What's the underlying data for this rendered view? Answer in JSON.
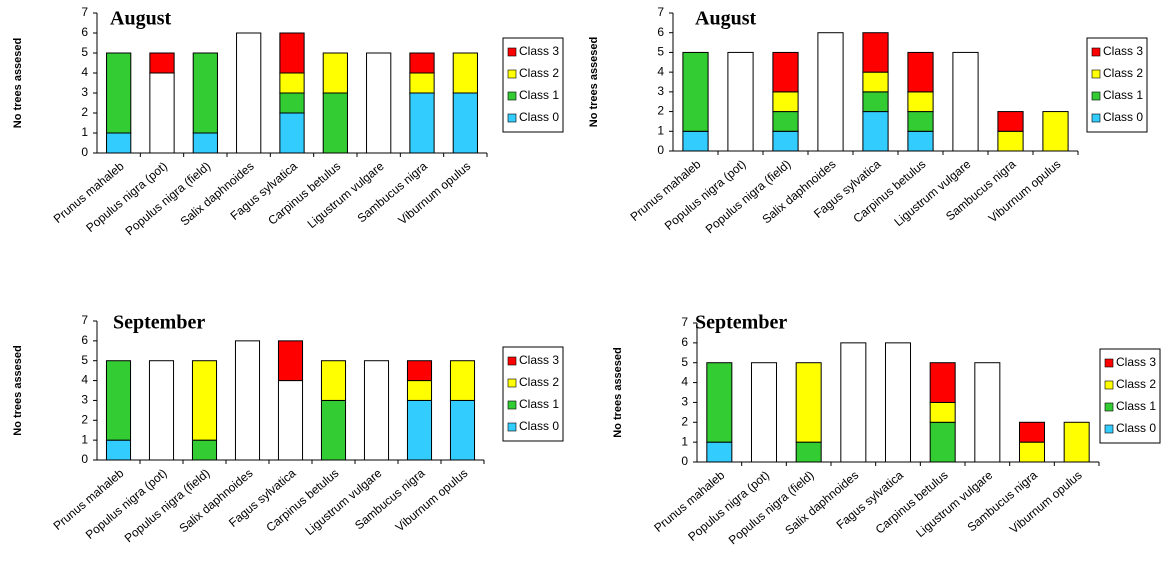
{
  "chart_data": [
    {
      "type": "stacked-bar",
      "title": "August",
      "y_label": "No trees assesed",
      "categories": [
        "Prunus mahaleb",
        "Populus nigra (pot)",
        "Populus nigra (field)",
        "Salix daphnoides",
        "Fagus sylvatica",
        "Carpinus betulus",
        "Ligustrum vulgare",
        "Sambucus nigra",
        "Viburnum opulus"
      ],
      "series": [
        {
          "color": "#ffffff",
          "values": [
            0,
            4,
            0,
            6,
            0,
            0,
            5,
            0,
            0
          ]
        },
        {
          "name": "Class 0",
          "color": "#33ccff",
          "values": [
            1,
            0,
            1,
            0,
            2,
            0,
            0,
            3,
            3
          ]
        },
        {
          "name": "Class 1",
          "color": "#33cc33",
          "values": [
            4,
            0,
            4,
            0,
            1,
            3,
            0,
            0,
            0
          ]
        },
        {
          "name": "Class 2",
          "color": "#ffff00",
          "values": [
            0,
            0,
            0,
            0,
            1,
            2,
            0,
            1,
            2
          ]
        },
        {
          "name": "Class 3",
          "color": "#ff0000",
          "values": [
            0,
            1,
            0,
            0,
            2,
            0,
            0,
            1,
            0
          ]
        }
      ],
      "ylim": [
        0,
        7
      ],
      "yticks": [
        0,
        1,
        2,
        3,
        4,
        5,
        6,
        7
      ],
      "grid": false,
      "legend": "right"
    },
    {
      "type": "stacked-bar",
      "title": "August",
      "y_label": "No trees assesed",
      "categories": [
        "Prunus mahaleb",
        "Populus nigra (pot)",
        "Populus nigra (field)",
        "Salix daphnoides",
        "Fagus sylvatica",
        "Carpinus betulus",
        "Ligustrum vulgare",
        "Sambucus nigra",
        "Viburnum opulus"
      ],
      "series": [
        {
          "color": "#ffffff",
          "values": [
            0,
            5,
            0,
            6,
            0,
            0,
            5,
            0,
            0
          ]
        },
        {
          "name": "Class 0",
          "color": "#33ccff",
          "values": [
            1,
            0,
            1,
            0,
            2,
            1,
            0,
            0,
            0
          ]
        },
        {
          "name": "Class 1",
          "color": "#33cc33",
          "values": [
            4,
            0,
            1,
            0,
            1,
            1,
            0,
            0,
            0
          ]
        },
        {
          "name": "Class 2",
          "color": "#ffff00",
          "values": [
            0,
            0,
            1,
            0,
            1,
            1,
            0,
            1,
            2
          ]
        },
        {
          "name": "Class 3",
          "color": "#ff0000",
          "values": [
            0,
            0,
            2,
            0,
            2,
            2,
            0,
            1,
            0
          ]
        }
      ],
      "ylim": [
        0,
        7
      ],
      "yticks": [
        0,
        1,
        2,
        3,
        4,
        5,
        6,
        7
      ],
      "grid": false,
      "legend": "right"
    },
    {
      "type": "stacked-bar",
      "title": "September",
      "y_label": "No trees assesed",
      "categories": [
        "Prunus mahaleb",
        "Populus nigra (pot)",
        "Populus nigra (field)",
        "Salix daphnoides",
        "Fagus sylvatica",
        "Carpinus betulus",
        "Ligustrum vulgare",
        "Sambucus nigra",
        "Viburnum opulus"
      ],
      "series": [
        {
          "color": "#ffffff",
          "values": [
            0,
            5,
            0,
            6,
            4,
            0,
            5,
            0,
            0
          ]
        },
        {
          "name": "Class 0",
          "color": "#33ccff",
          "values": [
            1,
            0,
            0,
            0,
            0,
            0,
            0,
            3,
            3
          ]
        },
        {
          "name": "Class 1",
          "color": "#33cc33",
          "values": [
            4,
            0,
            1,
            0,
            0,
            3,
            0,
            0,
            0
          ]
        },
        {
          "name": "Class 2",
          "color": "#ffff00",
          "values": [
            0,
            0,
            4,
            0,
            0,
            2,
            0,
            1,
            2
          ]
        },
        {
          "name": "Class 3",
          "color": "#ff0000",
          "values": [
            0,
            0,
            0,
            0,
            2,
            0,
            0,
            1,
            0
          ]
        }
      ],
      "ylim": [
        0,
        7
      ],
      "yticks": [
        0,
        1,
        2,
        3,
        4,
        5,
        6,
        7
      ],
      "grid": false,
      "legend": "right"
    },
    {
      "type": "stacked-bar",
      "title": "September",
      "y_label": "No trees assesed",
      "categories": [
        "Prunus mahaleb",
        "Populus nigra (pot)",
        "Populus nigra (field)",
        "Salix daphnoides",
        "Fagus sylvatica",
        "Carpinus betulus",
        "Ligustrum vulgare",
        "Sambucus nigra",
        "Viburnum opulus"
      ],
      "series": [
        {
          "color": "#ffffff",
          "values": [
            0,
            5,
            0,
            6,
            6,
            0,
            5,
            0,
            0
          ]
        },
        {
          "name": "Class 0",
          "color": "#33ccff",
          "values": [
            1,
            0,
            0,
            0,
            0,
            0,
            0,
            0,
            0
          ]
        },
        {
          "name": "Class 1",
          "color": "#33cc33",
          "values": [
            4,
            0,
            1,
            0,
            0,
            2,
            0,
            0,
            0
          ]
        },
        {
          "name": "Class 2",
          "color": "#ffff00",
          "values": [
            0,
            0,
            4,
            0,
            0,
            1,
            0,
            1,
            2
          ]
        },
        {
          "name": "Class 3",
          "color": "#ff0000",
          "values": [
            0,
            0,
            0,
            0,
            0,
            2,
            0,
            1,
            0
          ]
        }
      ],
      "ylim": [
        0,
        7
      ],
      "yticks": [
        0,
        1,
        2,
        3,
        4,
        5,
        6,
        7
      ],
      "grid": false,
      "legend": "right"
    }
  ]
}
